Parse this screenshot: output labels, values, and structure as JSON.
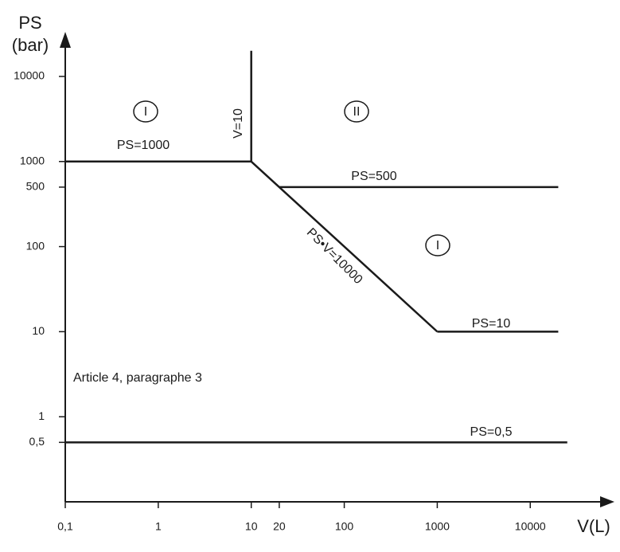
{
  "chart_data": {
    "type": "line",
    "y_label": [
      "PS",
      "(bar)"
    ],
    "x_label": "V(L)",
    "log_x": true,
    "log_y": true,
    "xlim": [
      0.1,
      70000
    ],
    "ylim": [
      0.1,
      30000
    ],
    "xticks": [
      {
        "value": 0.1,
        "label": "0,1"
      },
      1,
      10,
      20,
      100,
      1000,
      10000
    ],
    "yticks": [
      {
        "value": 0.5,
        "label": "0,5"
      },
      1,
      10,
      100,
      500,
      1000,
      10000
    ],
    "series": [
      {
        "name": "PS=1000",
        "color": "#1a1a1a",
        "x": [
          0.1,
          10
        ],
        "y": [
          1000,
          1000
        ]
      },
      {
        "name": "V=10",
        "color": "#1a1a1a",
        "x": [
          10,
          10
        ],
        "y": [
          1000,
          20000
        ]
      },
      {
        "name": "PS•V=10000",
        "color": "#1a1a1a",
        "x": [
          10,
          1000
        ],
        "y": [
          1000,
          10
        ]
      },
      {
        "name": "PS=500",
        "color": "#1a1a1a",
        "x": [
          20,
          20000
        ],
        "y": [
          500,
          500
        ]
      },
      {
        "name": "PS=10",
        "color": "#1a1a1a",
        "x": [
          1000,
          20000
        ],
        "y": [
          10,
          10
        ]
      },
      {
        "name": "PS=0,5",
        "color": "#1a1a1a",
        "x": [
          0.1,
          25000
        ],
        "y": [
          0.5,
          0.5
        ]
      }
    ],
    "regions": [
      "I",
      "II",
      "I"
    ],
    "annotation": "Article 4, paragraphe 3"
  }
}
